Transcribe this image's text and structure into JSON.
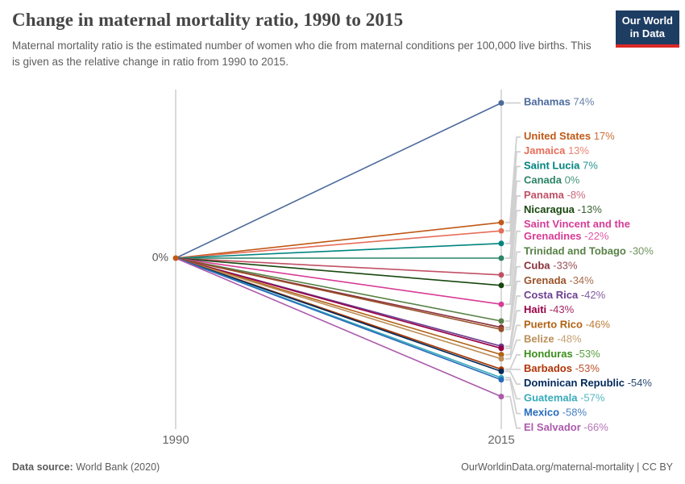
{
  "header": {
    "title": "Change in maternal mortality ratio, 1990 to 2015",
    "subtitle": "Maternal mortality ratio is the estimated number of women who die from maternal conditions per 100,000 live births. This is given as the relative change in ratio from 1990 to 2015.",
    "logo": {
      "line1": "Our World",
      "line2": "in Data",
      "bg_color": "#1d3d63",
      "accent_color": "#db2828"
    }
  },
  "chart_data": {
    "type": "line",
    "subtype": "slope",
    "x": [
      1990,
      2015
    ],
    "x_labels": [
      "1990",
      "2015"
    ],
    "zero_label": "0%",
    "ylim": [
      -70,
      80
    ],
    "grid": false,
    "legend_position": "right-labels",
    "series": [
      {
        "name": "Bahamas",
        "start": 0,
        "end": 74,
        "value_label": "74%",
        "color": "#4C6A9C"
      },
      {
        "name": "United States",
        "start": 0,
        "end": 17,
        "value_label": "17%",
        "color": "#C05917"
      },
      {
        "name": "Jamaica",
        "start": 0,
        "end": 13,
        "value_label": "13%",
        "color": "#E56E5A"
      },
      {
        "name": "Saint Lucia",
        "start": 0,
        "end": 7,
        "value_label": "7%",
        "color": "#00847E"
      },
      {
        "name": "Canada",
        "start": 0,
        "end": 0,
        "value_label": "0%",
        "color": "#2C8465"
      },
      {
        "name": "Panama",
        "start": 0,
        "end": -8,
        "value_label": "-8%",
        "color": "#C15065"
      },
      {
        "name": "Nicaragua",
        "start": 0,
        "end": -13,
        "value_label": "-13%",
        "color": "#18470F"
      },
      {
        "name": "Saint Vincent and the Grenadines",
        "start": 0,
        "end": -22,
        "value_label": "-22%",
        "color": "#D73C96"
      },
      {
        "name": "Trinidad and Tobago",
        "start": 0,
        "end": -30,
        "value_label": "-30%",
        "color": "#578145"
      },
      {
        "name": "Cuba",
        "start": 0,
        "end": -33,
        "value_label": "-33%",
        "color": "#883039"
      },
      {
        "name": "Grenada",
        "start": 0,
        "end": -34,
        "value_label": "-34%",
        "color": "#9A5129"
      },
      {
        "name": "Costa Rica",
        "start": 0,
        "end": -42,
        "value_label": "-42%",
        "color": "#6D3E91"
      },
      {
        "name": "Haiti",
        "start": 0,
        "end": -43,
        "value_label": "-43%",
        "color": "#970046"
      },
      {
        "name": "Puerto Rico",
        "start": 0,
        "end": -46,
        "value_label": "-46%",
        "color": "#B16214"
      },
      {
        "name": "Belize",
        "start": 0,
        "end": -48,
        "value_label": "-48%",
        "color": "#BC8E5A"
      },
      {
        "name": "Honduras",
        "start": 0,
        "end": -53,
        "value_label": "-53%",
        "color": "#3B8E1D"
      },
      {
        "name": "Barbados",
        "start": 0,
        "end": -53,
        "value_label": "-53%",
        "color": "#B13507"
      },
      {
        "name": "Dominican Republic",
        "start": 0,
        "end": -54,
        "value_label": "-54%",
        "color": "#00295B"
      },
      {
        "name": "Guatemala",
        "start": 0,
        "end": -57,
        "value_label": "-57%",
        "color": "#38AABA"
      },
      {
        "name": "Mexico",
        "start": 0,
        "end": -58,
        "value_label": "-58%",
        "color": "#286BBB"
      },
      {
        "name": "El Salvador",
        "start": 0,
        "end": -66,
        "value_label": "-66%",
        "color": "#AB5BAB"
      }
    ],
    "origin_dot_color": "#C05917",
    "axis_color": "#CDCDCD",
    "connector_color": "#D0D0D0",
    "tick_label_color": "#666666"
  },
  "footer": {
    "source_label": "Data source:",
    "source_value": " World Bank (2020)",
    "right_text": "OurWorldinData.org/maternal-mortality | CC BY"
  }
}
